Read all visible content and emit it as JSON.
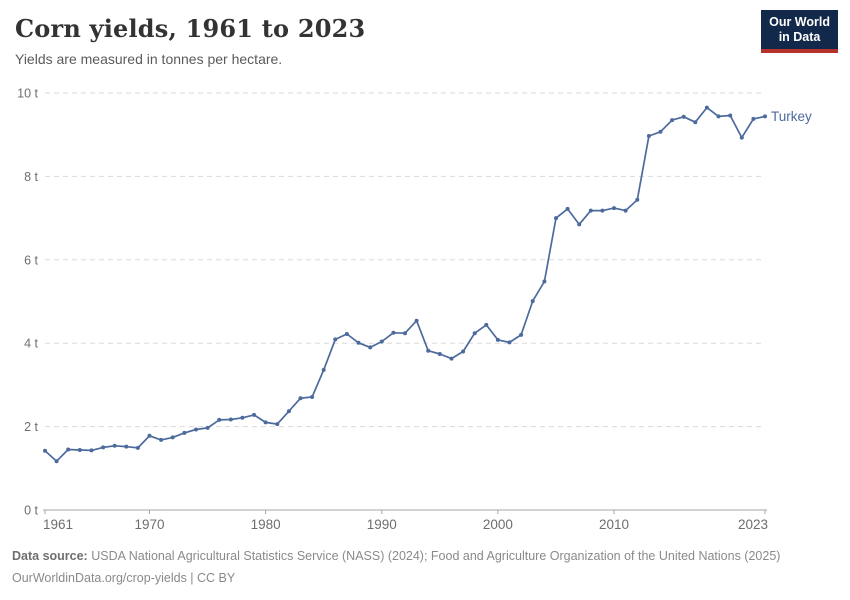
{
  "header": {
    "title": "Corn yields, 1961 to 2023",
    "subtitle": "Yields are measured in tonnes per hectare.",
    "logo": {
      "line1": "Our World",
      "line2": "in Data",
      "bg_color": "#12294b",
      "accent_color": "#b5312c"
    }
  },
  "chart_data": {
    "type": "line",
    "title": "Corn yields, 1961 to 2023",
    "subtitle": "Yields are measured in tonnes per hectare.",
    "unit": "tonnes per hectare",
    "xlim": [
      1961,
      2023
    ],
    "ylim": [
      0,
      10
    ],
    "grid": "horizontal dashed",
    "legend": "entity label at right end of line",
    "x_ticks": [
      1961,
      1970,
      1980,
      1990,
      2000,
      2010,
      2023
    ],
    "x_tick_labels": [
      "1961",
      "1970",
      "1980",
      "1990",
      "2000",
      "2010",
      "2023"
    ],
    "y_ticks": [
      0,
      2,
      4,
      6,
      8,
      10
    ],
    "y_tick_labels": [
      "0 t",
      "2 t",
      "4 t",
      "6 t",
      "8 t",
      "10 t"
    ],
    "series": [
      {
        "name": "Turkey",
        "color": "#4c6a9c",
        "x": [
          1961,
          1962,
          1963,
          1964,
          1965,
          1966,
          1967,
          1968,
          1969,
          1970,
          1971,
          1972,
          1973,
          1974,
          1975,
          1976,
          1977,
          1978,
          1979,
          1980,
          1981,
          1982,
          1983,
          1984,
          1985,
          1986,
          1987,
          1988,
          1989,
          1990,
          1991,
          1992,
          1993,
          1994,
          1995,
          1996,
          1997,
          1998,
          1999,
          2000,
          2001,
          2002,
          2003,
          2004,
          2005,
          2006,
          2007,
          2008,
          2009,
          2010,
          2011,
          2012,
          2013,
          2014,
          2015,
          2016,
          2017,
          2018,
          2019,
          2020,
          2021,
          2022,
          2023
        ],
        "values": [
          1.42,
          1.17,
          1.45,
          1.44,
          1.43,
          1.5,
          1.54,
          1.52,
          1.49,
          1.78,
          1.68,
          1.74,
          1.85,
          1.93,
          1.97,
          2.16,
          2.17,
          2.21,
          2.28,
          2.1,
          2.06,
          2.37,
          2.68,
          2.71,
          3.36,
          4.09,
          4.22,
          4.01,
          3.9,
          4.04,
          4.25,
          4.24,
          4.54,
          3.82,
          3.74,
          3.63,
          3.8,
          4.24,
          4.44,
          4.08,
          4.02,
          4.2,
          5.01,
          5.48,
          7.0,
          7.22,
          6.85,
          7.18,
          7.18,
          7.24,
          7.18,
          7.44,
          8.97,
          9.07,
          9.35,
          9.43,
          9.3,
          9.65,
          9.44,
          9.46,
          8.93,
          9.38,
          9.44
        ]
      }
    ]
  },
  "footer": {
    "source_label": "Data source:",
    "source_text": " USDA National Agricultural Statistics Service (NASS) (2024); Food and Agriculture Organization of the United Nations (2025)",
    "license_line": "OurWorldinData.org/crop-yields | CC BY"
  }
}
